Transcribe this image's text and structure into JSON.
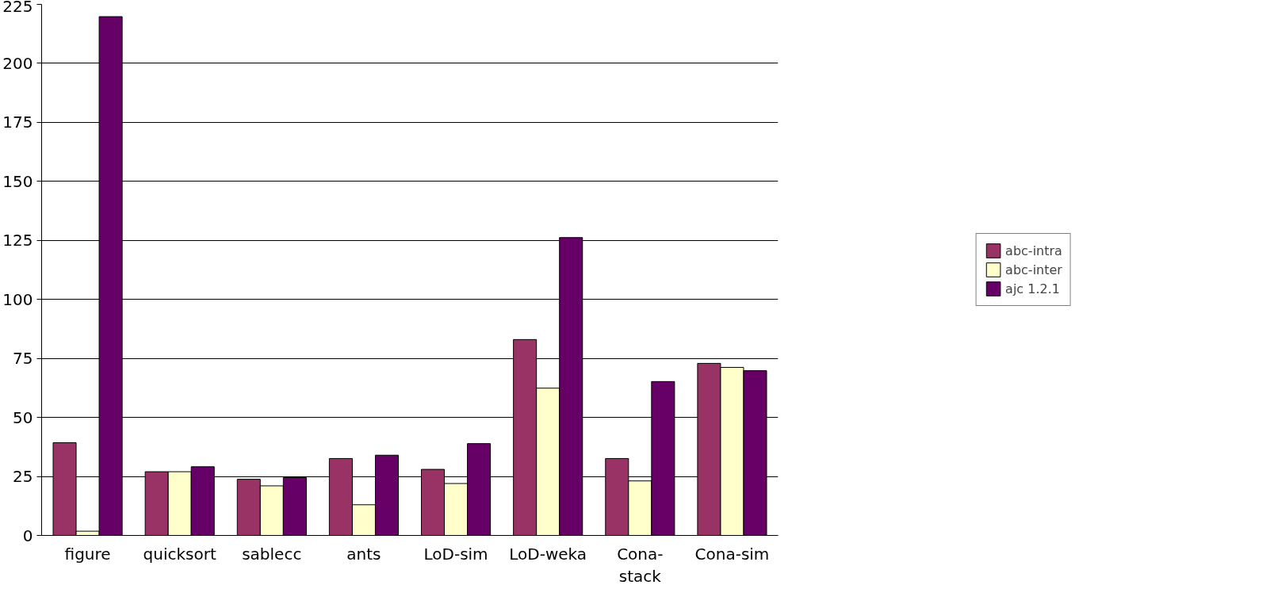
{
  "chart_data": {
    "type": "bar",
    "categories": [
      "figure",
      "quicksort",
      "sablecc",
      "ants",
      "LoD-sim",
      "LoD-weka",
      "Cona-\nstack",
      "Cona-sim"
    ],
    "series": [
      {
        "name": "abc-intra",
        "color": "#993366",
        "values": [
          39.3,
          27,
          23.8,
          32.6,
          28,
          83,
          32.6,
          72.9
        ]
      },
      {
        "name": "abc-inter",
        "color": "#ffffcc",
        "values": [
          1.8,
          27,
          21,
          13,
          22,
          62.4,
          23.1,
          71.2
        ]
      },
      {
        "name": "ajc 1.2.1",
        "color": "#660066",
        "values": [
          219.8,
          29.1,
          24.5,
          34,
          38.9,
          126.2,
          65.2,
          69.8
        ]
      }
    ],
    "ylim": [
      0,
      225
    ],
    "yticks": [
      0,
      25,
      50,
      75,
      100,
      125,
      150,
      175,
      200,
      225
    ],
    "grid": "y",
    "legend": "right"
  }
}
